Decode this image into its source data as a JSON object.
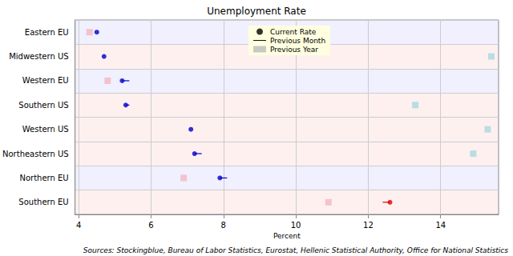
{
  "chart_data": {
    "type": "dot",
    "title": "Unemployment Rate",
    "x_label": "Percent",
    "annotations": [
      "Sources: Stockingblue, Bureau of Labor Statistics, Eurostat, Hellenic Statistical Authority, Office for National Statistics"
    ],
    "categories": [
      "Eastern EU",
      "Midwestern US",
      "Western EU",
      "Southern US",
      "Western US",
      "Northeastern US",
      "Northern EU",
      "Southern EU"
    ],
    "orientation": "horizontal",
    "xlim": [
      3.9,
      15.6
    ],
    "xticks": [
      4,
      6,
      8,
      10,
      12,
      14
    ],
    "grid": true,
    "legend": "top",
    "series": [
      {
        "name": "Current Rate",
        "type": "scatter",
        "marker": "circle",
        "values": [
          4.5,
          4.7,
          5.2,
          5.3,
          7.1,
          7.2,
          7.9,
          12.6
        ],
        "colors": [
          "#0000cc",
          "#0000cc",
          "#0000cc",
          "#0000cc",
          "#0000cc",
          "#0000cc",
          "#0000cc",
          "#dd0000"
        ]
      },
      {
        "name": "Previous Month",
        "type": "line",
        "line_style": "solid",
        "values": [
          4.5,
          4.7,
          5.4,
          5.4,
          7.1,
          7.4,
          8.1,
          12.4
        ],
        "colors": [
          "#0000cc",
          "#0000cc",
          "#0000cc",
          "#0000cc",
          "#0000cc",
          "#0000cc",
          "#0000cc",
          "#dd0000"
        ]
      },
      {
        "name": "Previous Year",
        "type": "scatter",
        "marker": "square",
        "values": [
          4.3,
          15.4,
          4.8,
          13.3,
          15.3,
          14.9,
          6.9,
          10.9
        ],
        "colors": [
          "#f4b6c2",
          "#a8d8e0",
          "#f4b6c2",
          "#a8d8e0",
          "#a8d8e0",
          "#a8d8e0",
          "#f4b6c2",
          "#f4b6c2"
        ]
      }
    ]
  }
}
